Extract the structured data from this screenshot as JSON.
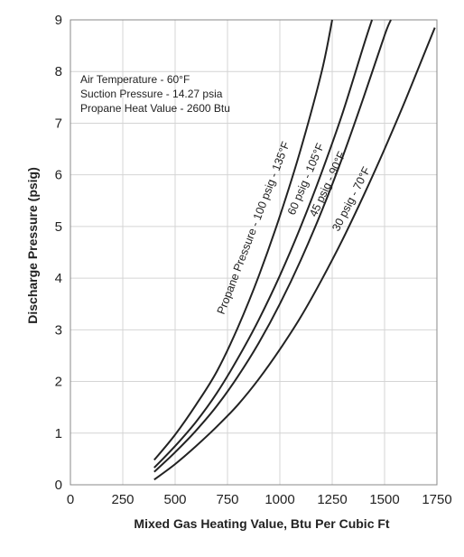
{
  "chart_data": {
    "type": "line",
    "title": "",
    "xlabel": "Mixed Gas Heating Value, Btu Per Cubic Ft",
    "ylabel": "Discharge Pressure (psig)",
    "xlim": [
      0,
      1750
    ],
    "ylim": [
      0,
      9
    ],
    "xticks": [
      0,
      250,
      500,
      750,
      1000,
      1250,
      1500,
      1750
    ],
    "yticks": [
      0,
      1,
      2,
      3,
      4,
      5,
      6,
      7,
      8,
      9
    ],
    "grid": true,
    "legend": "none",
    "annotations": [
      "Air Temperature - 60°F",
      "Suction Pressure - 14.27 psia",
      "Propane Heat Value - 2600 Btu"
    ],
    "series": [
      {
        "name": "Propane Pressure - 100 psig - 135°F",
        "x": [
          400,
          500,
          600,
          700,
          800,
          900,
          1000,
          1100,
          1200,
          1250
        ],
        "y": [
          0.48,
          0.97,
          1.55,
          2.2,
          3.05,
          4.05,
          5.2,
          6.5,
          8.0,
          9.0
        ]
      },
      {
        "name": "60 psig - 105°F",
        "x": [
          400,
          500,
          600,
          700,
          800,
          900,
          1000,
          1100,
          1200,
          1300,
          1400,
          1440
        ],
        "y": [
          0.33,
          0.75,
          1.22,
          1.78,
          2.45,
          3.2,
          4.05,
          5.0,
          6.05,
          7.2,
          8.5,
          9.0
        ]
      },
      {
        "name": "45 psig - 90°F",
        "x": [
          400,
          500,
          600,
          700,
          800,
          900,
          1000,
          1100,
          1200,
          1300,
          1400,
          1500,
          1530
        ],
        "y": [
          0.25,
          0.63,
          1.05,
          1.53,
          2.1,
          2.75,
          3.5,
          4.35,
          5.3,
          6.35,
          7.5,
          8.7,
          9.0
        ]
      },
      {
        "name": "30 psig - 70°F",
        "x": [
          400,
          500,
          600,
          700,
          800,
          900,
          1000,
          1100,
          1200,
          1300,
          1400,
          1500,
          1600,
          1700,
          1740
        ],
        "y": [
          0.1,
          0.4,
          0.75,
          1.13,
          1.55,
          2.05,
          2.62,
          3.25,
          3.97,
          4.75,
          5.6,
          6.5,
          7.45,
          8.45,
          8.85
        ]
      }
    ]
  }
}
